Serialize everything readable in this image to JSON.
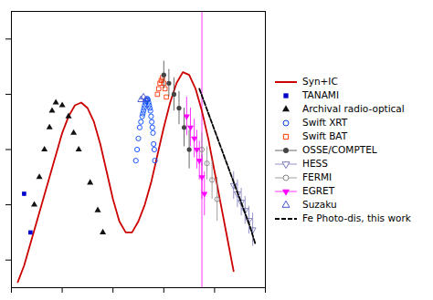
{
  "chart_data": {
    "type": "scatter",
    "xlim": [
      8.0,
      28.0
    ],
    "ylim": [
      9.5,
      14.5
    ],
    "xticks": [
      8,
      12,
      16,
      20,
      24,
      28
    ],
    "yticks": [
      10,
      11,
      12,
      13,
      14
    ],
    "tick_labels": false,
    "grid": false,
    "legend": "right",
    "series": [
      {
        "name": "Syn+IC",
        "type": "line",
        "color": "#cc0000",
        "line_style": "solid",
        "x": [
          8.5,
          9.0,
          9.5,
          10.0,
          10.5,
          11.0,
          11.5,
          12.0,
          12.5,
          13.0,
          13.5,
          14.0,
          14.5,
          15.0,
          15.5,
          16.0,
          16.5,
          17.0,
          17.5,
          18.0,
          18.5,
          19.0,
          19.5,
          20.0,
          20.5,
          21.0,
          21.5,
          22.0,
          22.5,
          23.0,
          23.5,
          24.0,
          24.5,
          25.0,
          25.5
        ],
        "y": [
          9.6,
          9.9,
          10.3,
          10.7,
          11.1,
          11.5,
          11.9,
          12.3,
          12.6,
          12.8,
          12.85,
          12.75,
          12.5,
          12.1,
          11.6,
          11.1,
          10.7,
          10.5,
          10.5,
          10.7,
          11.0,
          11.4,
          11.9,
          12.4,
          12.85,
          13.2,
          13.4,
          13.35,
          13.1,
          12.7,
          12.2,
          11.6,
          11.0,
          10.4,
          9.8
        ]
      },
      {
        "name": "TANAMI",
        "type": "scatter",
        "color": "#0000cc",
        "marker": "square",
        "x": [
          9.0,
          9.5
        ],
        "y": [
          11.2,
          10.5
        ]
      },
      {
        "name": "Archival radio-optical",
        "type": "scatter",
        "color": "#111111",
        "marker": "triangle-up",
        "x": [
          9.8,
          10.2,
          10.6,
          11.0,
          11.2,
          11.5,
          12.0,
          12.5,
          12.9,
          13.3,
          14.2,
          14.8,
          15.2
        ],
        "y": [
          11.0,
          11.5,
          12.0,
          12.4,
          12.7,
          12.85,
          12.8,
          12.6,
          12.3,
          12.0,
          11.4,
          10.9,
          10.5
        ]
      },
      {
        "name": "Swift XRT",
        "type": "scatter",
        "color": "#0044ff",
        "marker": "circle-open",
        "x": [
          17.8,
          17.9,
          18.0,
          18.1,
          18.2,
          18.3,
          18.35,
          18.4,
          18.45,
          18.5,
          18.55,
          18.6,
          18.65,
          18.7,
          18.75,
          18.8,
          18.85,
          18.9,
          18.95,
          19.0,
          19.05,
          19.1,
          19.15,
          19.2,
          19.25,
          19.3
        ],
        "y": [
          11.8,
          12.0,
          12.2,
          12.4,
          12.5,
          12.6,
          12.65,
          12.7,
          12.75,
          12.8,
          12.85,
          12.88,
          12.9,
          12.92,
          12.9,
          12.85,
          12.8,
          12.75,
          12.7,
          12.6,
          12.5,
          12.4,
          12.3,
          12.1,
          12.0,
          11.8
        ]
      },
      {
        "name": "Swift BAT",
        "type": "scatter",
        "color": "#ff3300",
        "marker": "square-open",
        "x": [
          19.5,
          19.6,
          19.7,
          19.8,
          19.9,
          20.0,
          20.1,
          20.2
        ],
        "y": [
          13.0,
          13.1,
          13.2,
          13.25,
          13.3,
          13.2,
          13.1,
          12.95
        ]
      },
      {
        "name": "OSSE/COMPTEL",
        "type": "scatter",
        "color": "#444444",
        "marker": "circle",
        "x": [
          20.0,
          20.4,
          20.8,
          21.2,
          21.6,
          22.0
        ],
        "y": [
          13.35,
          13.2,
          13.0,
          12.75,
          12.4,
          12.0
        ],
        "yerr": [
          0.25,
          0.25,
          0.3,
          0.3,
          0.35,
          0.35
        ]
      },
      {
        "name": "HESS",
        "type": "scatter",
        "color": "#7777bb",
        "marker": "triangle-down-open",
        "x": [
          25.5,
          25.8,
          26.1,
          26.4,
          26.7,
          27.0
        ],
        "y": [
          11.35,
          11.2,
          11.05,
          10.9,
          10.72,
          10.55
        ],
        "yerr": [
          0.25,
          0.25,
          0.25,
          0.25,
          0.25,
          0.3
        ]
      },
      {
        "name": "FERMI",
        "type": "scatter",
        "color": "#888888",
        "marker": "circle-open",
        "x": [
          23.0,
          23.4,
          23.8,
          24.2
        ],
        "y": [
          12.0,
          11.75,
          11.45,
          11.1
        ],
        "yerr": [
          0.3,
          0.3,
          0.35,
          0.4
        ]
      },
      {
        "name": "EGRET",
        "type": "scatter",
        "color": "#ff00ff",
        "marker": "triangle-down",
        "x": [
          21.8,
          22.1,
          22.4,
          22.6,
          22.8,
          23.0,
          23.2
        ],
        "y": [
          12.6,
          12.4,
          12.2,
          12.0,
          11.8,
          11.5,
          11.2
        ],
        "yerr": [
          0.35,
          0.35,
          0.35,
          0.35,
          0.35,
          0.4,
          0.4
        ]
      },
      {
        "name": "Suzaku",
        "type": "scatter",
        "color": "#4455cc",
        "marker": "triangle-up-open",
        "x": [
          18.2,
          18.4,
          18.6
        ],
        "y": [
          12.9,
          12.95,
          12.9
        ]
      },
      {
        "name": "Fe Photo-dis, this work",
        "type": "line",
        "color": "#000000",
        "line_style": "dashed",
        "x": [
          22.8,
          23.2,
          23.6,
          24.0,
          24.4,
          24.8,
          25.2,
          25.6,
          26.0,
          26.4,
          26.8,
          27.2
        ],
        "y": [
          13.1,
          12.85,
          12.6,
          12.35,
          12.1,
          11.85,
          11.6,
          11.35,
          11.1,
          10.85,
          10.6,
          10.3
        ]
      }
    ],
    "vlines": [
      {
        "x": 23.0,
        "color": "#ff00ff"
      }
    ]
  }
}
